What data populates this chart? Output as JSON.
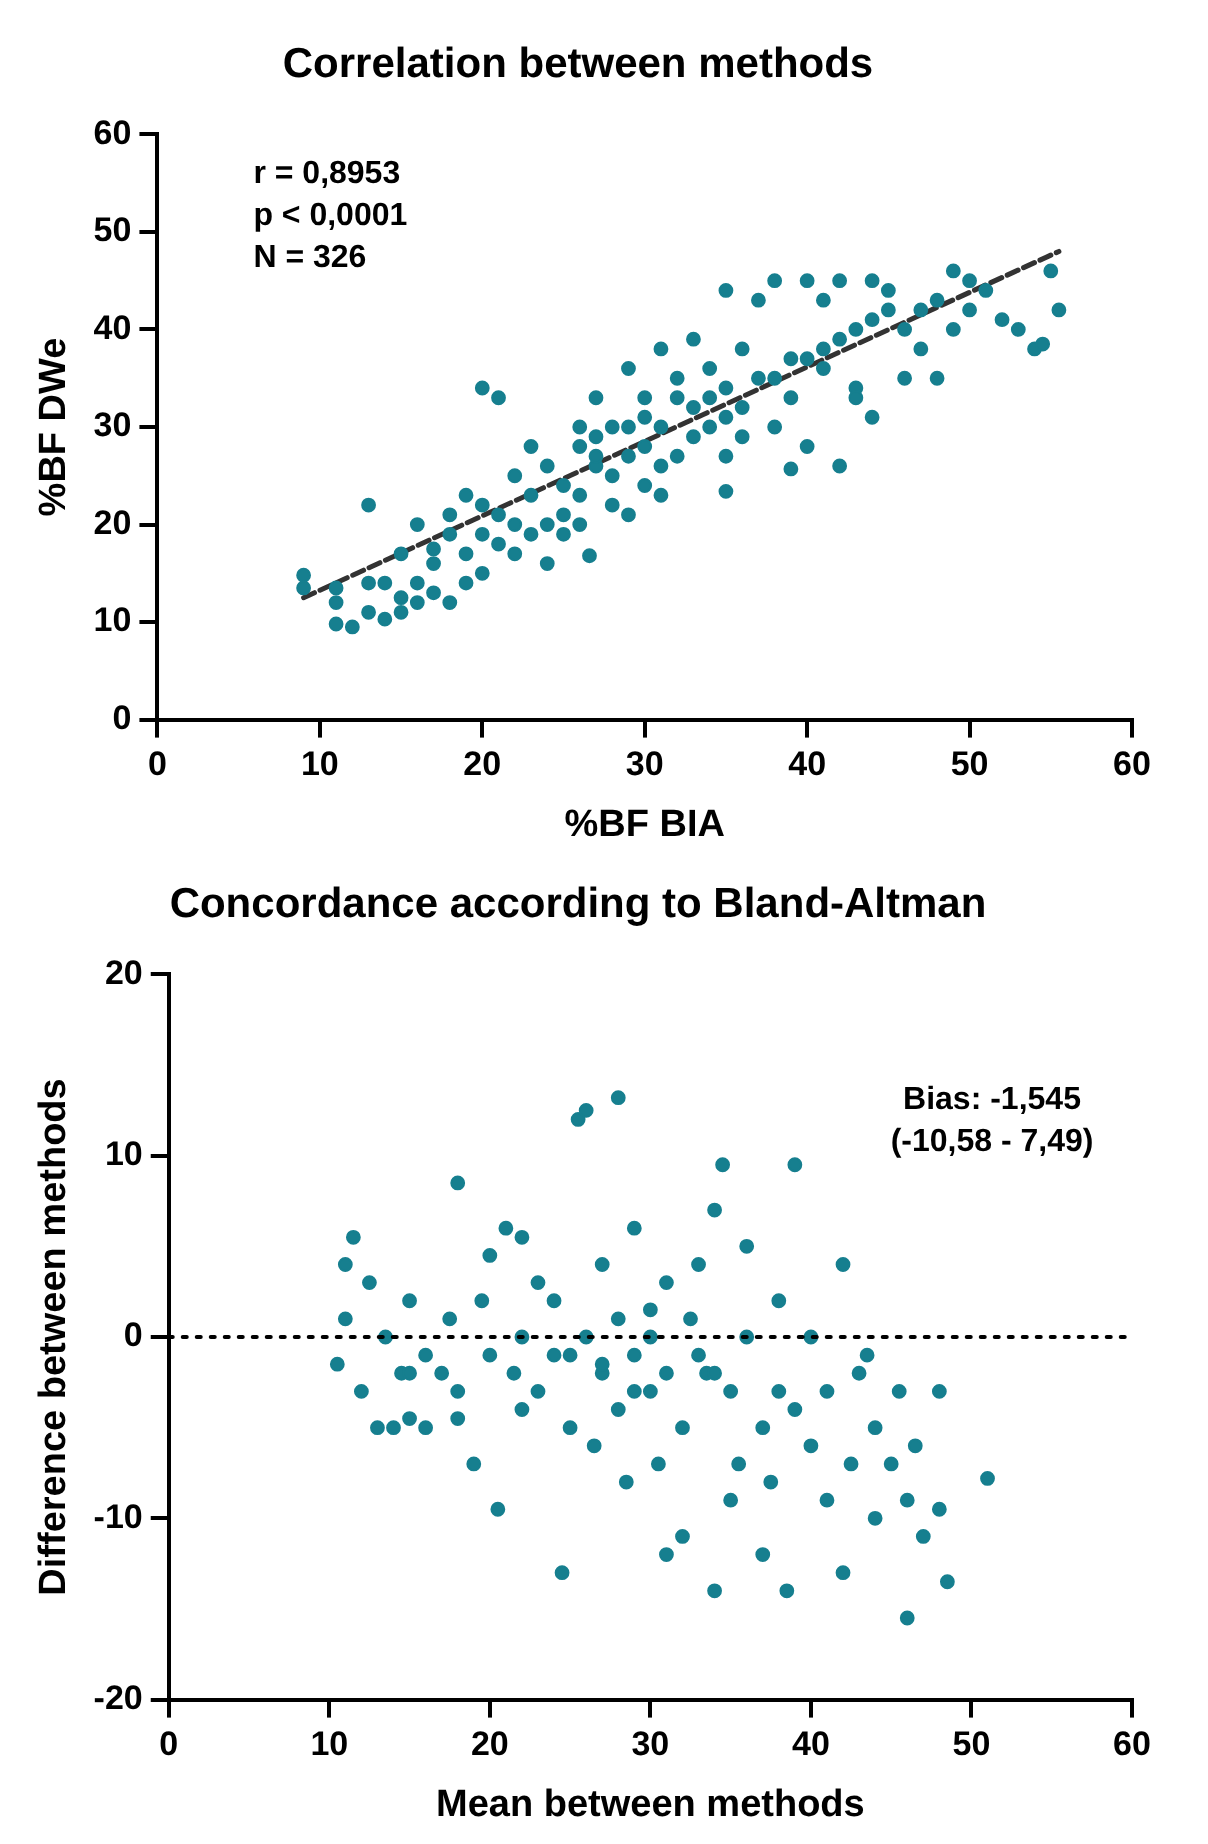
{
  "chart_data": [
    {
      "type": "scatter",
      "title": "Correlation between methods",
      "xlabel": "%BF BIA",
      "ylabel": "%BF DWe",
      "xlim": [
        0,
        60
      ],
      "xticks": [
        0,
        10,
        20,
        30,
        40,
        50,
        60
      ],
      "ylim": [
        0,
        60
      ],
      "yticks": [
        0,
        10,
        20,
        30,
        40,
        50,
        60
      ],
      "grid": false,
      "legend": false,
      "annotations": [
        "r = 0,8953",
        "p < 0,0001",
        "N = 326"
      ],
      "series": [
        {
          "marker": "circle",
          "color": "#167f8f",
          "x": [
            9,
            9,
            11,
            11,
            12,
            11,
            13,
            14,
            15,
            15,
            16,
            13,
            16,
            17,
            15,
            13,
            17,
            18,
            18,
            19,
            20,
            20,
            21,
            21,
            22,
            23,
            23,
            22,
            24,
            24,
            25,
            25,
            26,
            27,
            28,
            28,
            27,
            29,
            30,
            30,
            31,
            31,
            32,
            32,
            33,
            33,
            34,
            34,
            35,
            35,
            35,
            36,
            36,
            37,
            38,
            38,
            39,
            40,
            41,
            40,
            41,
            42,
            43,
            43,
            44,
            45,
            46,
            46,
            47,
            48,
            49,
            49,
            50,
            51,
            52,
            53,
            54,
            55,
            55.5,
            54.5,
            48,
            43,
            42,
            44,
            37,
            38,
            40,
            35,
            33,
            31,
            29,
            27,
            25,
            29,
            30,
            31,
            27,
            26,
            20,
            21,
            20,
            19,
            18,
            17,
            14,
            22,
            24,
            26,
            28,
            29,
            30,
            32,
            34,
            36,
            39,
            41,
            42,
            44,
            45,
            47,
            50,
            39,
            35,
            26.6,
            26,
            23,
            19,
            16
          ],
          "values": [
            14.8,
            13.5,
            13.5,
            9.8,
            9.5,
            12,
            11,
            10.3,
            11,
            12.5,
            12,
            14,
            14,
            16,
            17,
            22,
            17.5,
            19,
            21,
            17,
            19,
            22,
            21,
            18,
            20,
            23,
            19,
            25,
            26,
            16,
            19,
            21,
            23,
            26,
            30,
            25,
            29,
            27,
            31,
            28,
            26,
            30,
            27,
            33,
            32,
            29,
            30,
            36,
            34,
            31,
            27,
            32,
            38,
            35,
            35,
            30,
            33,
            37,
            38,
            28,
            36,
            39,
            40,
            34,
            41,
            42,
            40,
            35,
            42,
            43,
            40,
            46,
            42,
            44,
            41,
            40,
            38,
            46,
            42,
            38.5,
            35,
            33,
            26,
            31,
            43,
            45,
            45,
            44,
            39,
            38,
            36,
            27,
            24,
            21,
            24,
            23,
            33,
            30,
            34,
            33,
            15,
            14,
            12,
            13,
            14,
            17,
            20,
            28,
            22,
            30,
            33,
            35,
            33,
            29,
            37,
            43,
            45,
            45,
            44,
            38,
            45,
            25.7,
            23.4,
            16.8,
            20,
            28,
            23,
            20
          ]
        },
        {
          "type": "line",
          "color": "#333333",
          "line_style": "dashed",
          "x": [
            9,
            55.5
          ],
          "values": [
            12.5,
            48
          ]
        }
      ]
    },
    {
      "type": "scatter",
      "title": "Concordance according to Bland-Altman",
      "xlabel": "Mean between methods",
      "ylabel": "Difference between methods",
      "xlim": [
        0,
        60
      ],
      "xticks": [
        0,
        10,
        20,
        30,
        40,
        50,
        60
      ],
      "ylim": [
        -20,
        20
      ],
      "yticks": [
        -20,
        -10,
        0,
        10,
        20
      ],
      "grid": false,
      "legend": false,
      "marker": "circle",
      "annotations": [
        "Bias: -1,545",
        "(-10,58 - 7,49)"
      ],
      "ref_lines": [
        {
          "axis": "y",
          "value": 0,
          "color": "#000000",
          "line_style": "dotted"
        }
      ],
      "series": [
        {
          "color": "#167f8f",
          "x": [
            10.5,
            11,
            11.5,
            11,
            12,
            12.5,
            13,
            13.5,
            14,
            14.5,
            15,
            15,
            16,
            16,
            17,
            17.5,
            18,
            18,
            19,
            19.5,
            20,
            20,
            20.5,
            21,
            21.5,
            22,
            22,
            23,
            23,
            24,
            24,
            24.5,
            25,
            25.5,
            26,
            26,
            26.5,
            27,
            27,
            28,
            28,
            28.5,
            28,
            29,
            29,
            30,
            30,
            30.5,
            31,
            31,
            31,
            32,
            32,
            32.5,
            33,
            33,
            33.5,
            34,
            34,
            34.5,
            35,
            35,
            35.5,
            36,
            36,
            37,
            37,
            37.5,
            38,
            38,
            38.5,
            39,
            39,
            40,
            40,
            41,
            41,
            42,
            42,
            42.5,
            43,
            43.5,
            44,
            44,
            45,
            45.5,
            46,
            46,
            46.5,
            47,
            48,
            48,
            48.5,
            51,
            25,
            27,
            29,
            30,
            34,
            22,
            18,
            15
          ],
          "values": [
            -1.5,
            1,
            5.5,
            4,
            -3,
            3,
            -5,
            0,
            -5,
            -2,
            2,
            -4.5,
            -1,
            -5,
            -2,
            1,
            8.5,
            -3,
            -7,
            2,
            -1,
            4.5,
            -9.5,
            6,
            -2,
            0,
            5.5,
            -3,
            3,
            -1,
            2,
            -13,
            -5,
            12,
            12.5,
            0,
            -6,
            -2,
            4,
            13.2,
            -4,
            -8,
            1,
            -1,
            6,
            -3,
            0,
            -7,
            -12,
            -2,
            3,
            -11,
            -5,
            1,
            -1,
            4,
            -2,
            -14,
            7,
            9.5,
            -3,
            -9,
            -7,
            0,
            5,
            -5,
            -12,
            -8,
            -3,
            2,
            -14,
            9.5,
            -4,
            -6,
            0,
            -9,
            -3,
            -13,
            4,
            -7,
            -2,
            -1,
            -10,
            -5,
            -7,
            -3,
            -15.5,
            -9,
            -6,
            -11,
            -3,
            -9.5,
            -13.5,
            -7.8,
            -1,
            -1.5,
            -3,
            1.5,
            -2,
            -4,
            -4.5,
            -2
          ]
        }
      ]
    }
  ]
}
